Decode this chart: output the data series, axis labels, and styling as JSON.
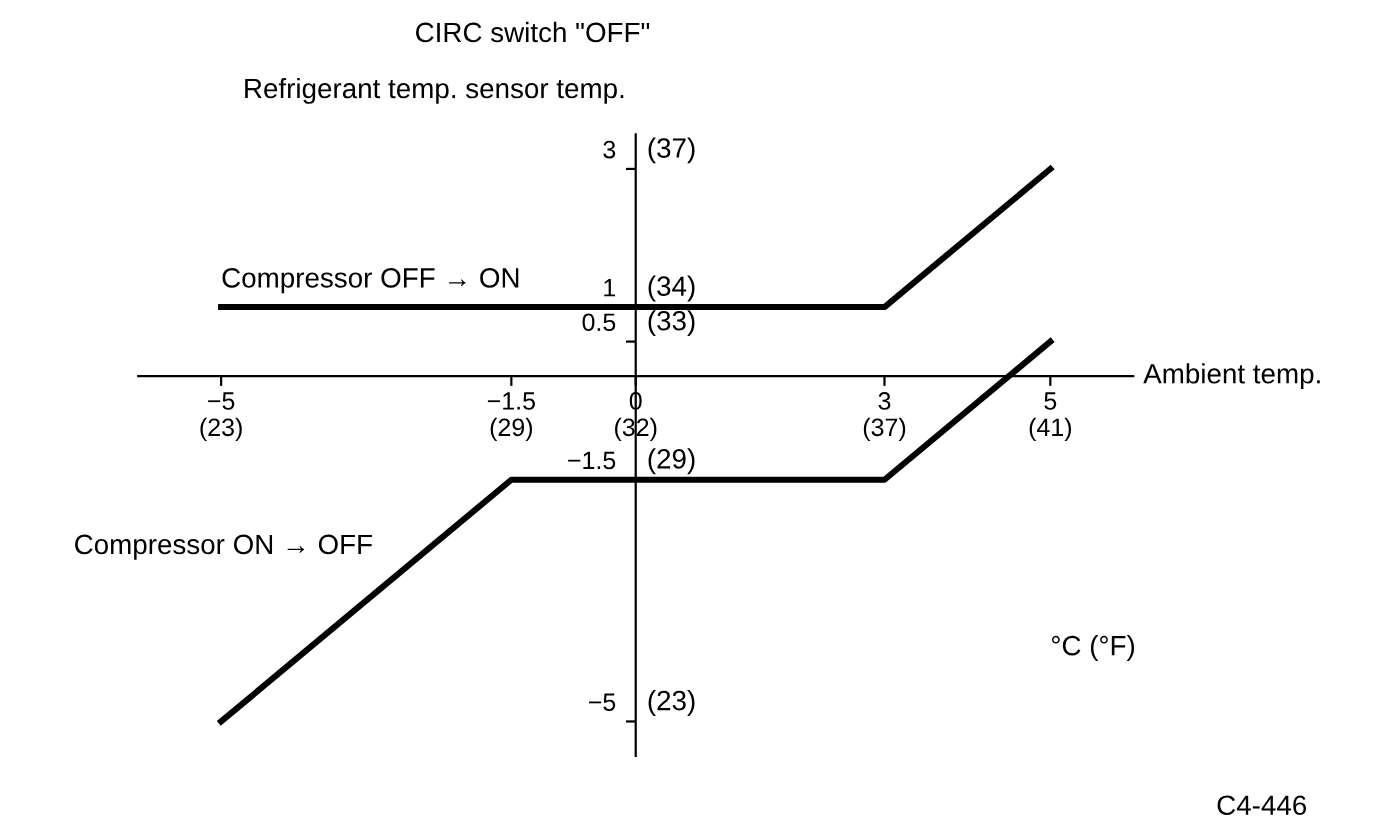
{
  "chart_data": {
    "type": "line",
    "title": "CIRC switch \"OFF\"",
    "ylabel": "Refrigerant temp. sensor temp.",
    "xlabel": "Ambient temp.",
    "series": [
      {
        "name": "Compressor OFF → ON",
        "color": "#000000",
        "x": [
          -5,
          3,
          5
        ],
        "values": [
          1,
          1,
          3
        ]
      },
      {
        "name": "Compressor ON → OFF",
        "color": "#000000",
        "x": [
          -5,
          -1.5,
          3,
          5
        ],
        "values": [
          -5,
          -1.5,
          -1.5,
          0.5
        ]
      }
    ],
    "xlim": [
      -6,
      6
    ],
    "ylim": [
      -5.5,
      3.5
    ],
    "xticks": [
      {
        "value": -5,
        "label": "−5"
      },
      {
        "value": -1.5,
        "label": "−1.5"
      },
      0,
      3,
      5
    ],
    "yticks": [
      {
        "value": -5,
        "label": "−5"
      },
      {
        "value": -1.5,
        "label": "−1.5"
      },
      0.5,
      1,
      3
    ],
    "x2lim": [
      21.2,
      42.8
    ],
    "x2ticks": [
      {
        "value": 23,
        "label": "(23)"
      },
      {
        "value": 29.3,
        "label": "(29)"
      },
      {
        "value": 32,
        "label": "(32)"
      },
      {
        "value": 37.4,
        "label": "(37)"
      },
      {
        "value": 41,
        "label": "(41)"
      }
    ],
    "y2lim": [
      22.1,
      38.3
    ],
    "y2ticks": [
      {
        "value": 23,
        "label": "(23)"
      },
      {
        "value": 29.3,
        "label": "(29)"
      },
      {
        "value": 32.9,
        "label": "(33)"
      },
      {
        "value": 33.8,
        "label": "(34)"
      },
      {
        "value": 37.4,
        "label": "(37)"
      }
    ],
    "annotations": [
      "°C (°F)",
      "C4-446"
    ],
    "grid": false,
    "legend": false,
    "line_style": "solid",
    "marker": "none"
  }
}
